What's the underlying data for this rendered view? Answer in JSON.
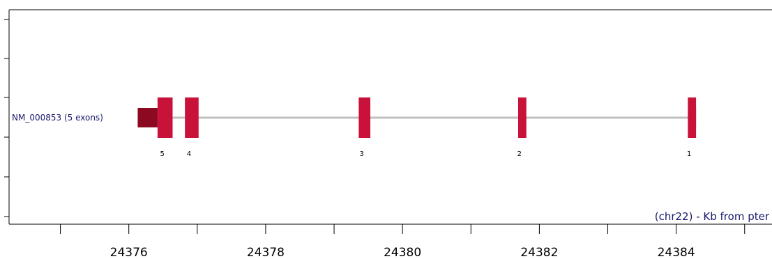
{
  "chart_data": {
    "type": "gene-structure",
    "x_unit": "Kb",
    "xlim": [
      24374.25,
      24385.4
    ],
    "x_ticks": [
      24376,
      24378,
      24380,
      24382,
      24384
    ],
    "axis_caption": "(chr22) - Kb from pter",
    "transcript": {
      "label": "NM_000853 (5 exons)",
      "start": 24376.13,
      "end": 24384.29
    },
    "exons": [
      {
        "number": "5",
        "start": 24376.42,
        "end": 24376.64
      },
      {
        "number": "4",
        "start": 24376.82,
        "end": 24377.02
      },
      {
        "number": "3",
        "start": 24379.36,
        "end": 24379.53
      },
      {
        "number": "2",
        "start": 24381.69,
        "end": 24381.81
      },
      {
        "number": "1",
        "start": 24384.17,
        "end": 24384.29
      }
    ],
    "utrs": [
      {
        "start": 24376.13,
        "end": 24376.42
      },
      {
        "start": 24384.22,
        "end": 24384.29
      }
    ],
    "colors": {
      "exon": "#c8123a",
      "utr": "#8b0a22",
      "intron": "#c0c0c0",
      "label": "#1a1a6e",
      "axis": "#000000"
    }
  }
}
